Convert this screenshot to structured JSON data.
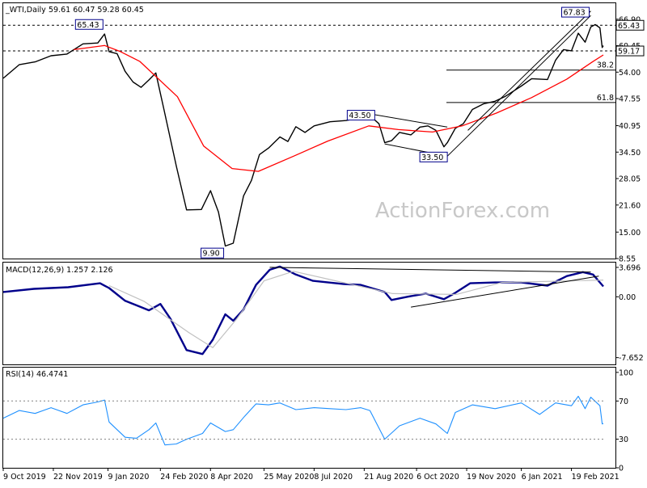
{
  "chart_data": [
    {
      "type": "candlestick",
      "symbol_header": "_WTI,Daily",
      "ohlc_header": "59.61 60.47 59.28 60.45",
      "watermark": "ActionForex.com",
      "ylim": [
        8.55,
        70.8
      ],
      "y_ticks": [
        "66.90",
        "60.45",
        "54.00",
        "47.55",
        "40.95",
        "34.50",
        "28.05",
        "21.60",
        "15.00",
        "8.55"
      ],
      "price_tags": [
        {
          "label": "65.43",
          "value": 65.43
        },
        {
          "label": "59.17",
          "value": 59.17
        }
      ],
      "fib_levels": [
        {
          "label": "38.2",
          "value": 54.5
        },
        {
          "label": "61.8",
          "value": 46.6
        }
      ],
      "annotations": [
        {
          "label": "65.43",
          "date": "2020-01-06",
          "value": 65.43
        },
        {
          "label": "9.90",
          "date": "2020-04-21",
          "value": 9.9
        },
        {
          "label": "43.50",
          "date": "2020-08-26",
          "value": 43.5
        },
        {
          "label": "33.50",
          "date": "2020-11-02",
          "value": 33.5
        },
        {
          "label": "67.83",
          "date": "2021-03-08",
          "value": 67.83
        }
      ],
      "series": [
        {
          "name": "price",
          "color": "#000000",
          "points": [
            [
              "2019-10-09",
              52.5
            ],
            [
              "2019-10-23",
              55.8
            ],
            [
              "2019-11-06",
              56.5
            ],
            [
              "2019-11-20",
              58.0
            ],
            [
              "2019-12-04",
              58.4
            ],
            [
              "2019-12-18",
              60.9
            ],
            [
              "2019-12-31",
              61.1
            ],
            [
              "2020-01-06",
              63.3
            ],
            [
              "2020-01-10",
              59.0
            ],
            [
              "2020-01-17",
              58.5
            ],
            [
              "2020-01-24",
              54.2
            ],
            [
              "2020-01-31",
              51.6
            ],
            [
              "2020-02-07",
              50.3
            ],
            [
              "2020-02-14",
              52.1
            ],
            [
              "2020-02-20",
              53.8
            ],
            [
              "2020-02-27",
              45.1
            ],
            [
              "2020-03-09",
              31.1
            ],
            [
              "2020-03-18",
              20.4
            ],
            [
              "2020-03-31",
              20.5
            ],
            [
              "2020-04-08",
              25.1
            ],
            [
              "2020-04-15",
              19.9
            ],
            [
              "2020-04-21",
              11.6
            ],
            [
              "2020-04-28",
              12.3
            ],
            [
              "2020-05-07",
              23.8
            ],
            [
              "2020-05-14",
              27.6
            ],
            [
              "2020-05-21",
              33.9
            ],
            [
              "2020-05-29",
              35.5
            ],
            [
              "2020-06-08",
              38.2
            ],
            [
              "2020-06-15",
              37.1
            ],
            [
              "2020-06-22",
              40.7
            ],
            [
              "2020-06-30",
              39.3
            ],
            [
              "2020-07-08",
              40.9
            ],
            [
              "2020-07-22",
              41.9
            ],
            [
              "2020-08-05",
              42.2
            ],
            [
              "2020-08-18",
              42.9
            ],
            [
              "2020-08-26",
              43.4
            ],
            [
              "2020-09-03",
              41.4
            ],
            [
              "2020-09-08",
              36.8
            ],
            [
              "2020-09-14",
              37.3
            ],
            [
              "2020-09-21",
              39.3
            ],
            [
              "2020-10-01",
              38.7
            ],
            [
              "2020-10-09",
              40.6
            ],
            [
              "2020-10-16",
              40.9
            ],
            [
              "2020-10-23",
              39.8
            ],
            [
              "2020-10-30",
              35.8
            ],
            [
              "2020-11-02",
              36.8
            ],
            [
              "2020-11-09",
              40.3
            ],
            [
              "2020-11-16",
              41.4
            ],
            [
              "2020-11-24",
              44.9
            ],
            [
              "2020-12-04",
              46.3
            ],
            [
              "2020-12-14",
              46.9
            ],
            [
              "2020-12-23",
              48.1
            ],
            [
              "2021-01-06",
              50.6
            ],
            [
              "2021-01-15",
              52.4
            ],
            [
              "2021-01-22",
              52.3
            ],
            [
              "2021-01-29",
              52.2
            ],
            [
              "2021-02-05",
              56.9
            ],
            [
              "2021-02-12",
              59.5
            ],
            [
              "2021-02-19",
              59.2
            ],
            [
              "2021-02-25",
              63.5
            ],
            [
              "2021-03-03",
              61.3
            ],
            [
              "2021-03-08",
              65.0
            ],
            [
              "2021-03-12",
              65.6
            ],
            [
              "2021-03-16",
              64.8
            ],
            [
              "2021-03-18",
              60.0
            ],
            [
              "2021-03-19",
              60.45
            ]
          ]
        },
        {
          "name": "ma",
          "color": "#ff0000",
          "points": [
            [
              "2019-12-10",
              59.5
            ],
            [
              "2020-01-06",
              60.5
            ],
            [
              "2020-01-20",
              59.0
            ],
            [
              "2020-02-06",
              56.6
            ],
            [
              "2020-03-10",
              48.0
            ],
            [
              "2020-04-02",
              36.0
            ],
            [
              "2020-04-27",
              30.5
            ],
            [
              "2020-05-20",
              29.8
            ],
            [
              "2020-06-20",
              33.5
            ],
            [
              "2020-07-20",
              37.2
            ],
            [
              "2020-08-25",
              40.9
            ],
            [
              "2020-09-20",
              40.0
            ],
            [
              "2020-10-20",
              39.4
            ],
            [
              "2020-11-15",
              40.9
            ],
            [
              "2020-12-15",
              44.0
            ],
            [
              "2021-01-15",
              47.8
            ],
            [
              "2021-02-15",
              52.3
            ],
            [
              "2021-03-10",
              56.6
            ],
            [
              "2021-03-19",
              58.2
            ]
          ]
        },
        {
          "name": "trend",
          "color": "#000000",
          "points": [
            [
              "2020-08-20",
              44.1
            ],
            [
              "2020-11-02",
              40.6
            ]
          ]
        },
        {
          "name": "trend",
          "color": "#000000",
          "points": [
            [
              "2020-09-08",
              36.5
            ],
            [
              "2020-11-02",
              33.5
            ]
          ]
        },
        {
          "name": "trend",
          "color": "#000000",
          "points": [
            [
              "2020-11-02",
              33.5
            ],
            [
              "2021-03-08",
              67.8
            ]
          ]
        },
        {
          "name": "trend",
          "color": "#000000",
          "points": [
            [
              "2020-11-20",
              39.8
            ],
            [
              "2021-03-08",
              68.9
            ]
          ]
        }
      ]
    },
    {
      "type": "line",
      "title": "MACD(12,26,9) 1.257 2.126",
      "ylim": [
        -8.5,
        4.3
      ],
      "y_ticks": [
        "3.696",
        "0.00",
        "-7.652"
      ],
      "series": [
        {
          "name": "macd",
          "color": "#00008b",
          "points": [
            [
              "2019-10-09",
              0.6
            ],
            [
              "2019-11-05",
              1.0
            ],
            [
              "2019-12-05",
              1.2
            ],
            [
              "2020-01-02",
              1.7
            ],
            [
              "2020-01-10",
              1.1
            ],
            [
              "2020-01-24",
              -0.5
            ],
            [
              "2020-02-07",
              -1.3
            ],
            [
              "2020-02-14",
              -1.7
            ],
            [
              "2020-02-24",
              -0.9
            ],
            [
              "2020-03-04",
              -2.8
            ],
            [
              "2020-03-18",
              -6.7
            ],
            [
              "2020-04-01",
              -7.2
            ],
            [
              "2020-04-10",
              -5.4
            ],
            [
              "2020-04-21",
              -2.2
            ],
            [
              "2020-04-28",
              -3.0
            ],
            [
              "2020-05-07",
              -1.6
            ],
            [
              "2020-05-18",
              1.5
            ],
            [
              "2020-05-30",
              3.4
            ],
            [
              "2020-06-08",
              3.8
            ],
            [
              "2020-06-22",
              2.8
            ],
            [
              "2020-07-07",
              2.0
            ],
            [
              "2020-08-03",
              1.6
            ],
            [
              "2020-08-18",
              1.5
            ],
            [
              "2020-09-08",
              0.6
            ],
            [
              "2020-09-14",
              -0.4
            ],
            [
              "2020-09-28",
              0.0
            ],
            [
              "2020-10-14",
              0.4
            ],
            [
              "2020-10-30",
              -0.3
            ],
            [
              "2020-11-09",
              0.5
            ],
            [
              "2020-11-22",
              1.7
            ],
            [
              "2020-12-14",
              1.8
            ],
            [
              "2021-01-06",
              1.8
            ],
            [
              "2021-01-29",
              1.4
            ],
            [
              "2021-02-15",
              2.6
            ],
            [
              "2021-03-01",
              3.1
            ],
            [
              "2021-03-10",
              2.8
            ],
            [
              "2021-03-19",
              1.3
            ]
          ]
        },
        {
          "name": "signal",
          "color": "#c0c0c0",
          "points": [
            [
              "2020-01-10",
              1.4
            ],
            [
              "2020-02-10",
              -0.6
            ],
            [
              "2020-03-20",
              -4.5
            ],
            [
              "2020-04-10",
              -6.4
            ],
            [
              "2020-05-01",
              -2.8
            ],
            [
              "2020-05-25",
              2.0
            ],
            [
              "2020-06-20",
              3.2
            ],
            [
              "2020-07-30",
              1.9
            ],
            [
              "2020-09-15",
              0.4
            ],
            [
              "2020-11-10",
              0.3
            ],
            [
              "2020-12-20",
              1.8
            ],
            [
              "2021-03-19",
              2.1
            ]
          ]
        },
        {
          "name": "trend",
          "color": "#000000",
          "points": [
            [
              "2020-05-30",
              3.7
            ],
            [
              "2021-03-08",
              3.1
            ]
          ]
        },
        {
          "name": "trend",
          "color": "#000000",
          "points": [
            [
              "2020-10-01",
              -1.3
            ],
            [
              "2021-03-15",
              2.6
            ]
          ]
        }
      ]
    },
    {
      "type": "line",
      "title": "RSI(14) 46.4741",
      "ylim": [
        0,
        105
      ],
      "y_ticks": [
        "100",
        "70",
        "30",
        "0"
      ],
      "x_ticks": [
        "9 Oct 2019",
        "22 Nov 2019",
        "9 Jan 2020",
        "24 Feb 2020",
        "8 Apr 2020",
        "25 May 2020",
        "8 Jul 2020",
        "21 Aug 2020",
        "6 Oct 2020",
        "19 Nov 2020",
        "6 Jan 2021",
        "19 Feb 2021"
      ],
      "series": [
        {
          "name": "rsi",
          "color": "#1e90ff",
          "points": [
            [
              "2019-10-09",
              52
            ],
            [
              "2019-10-23",
              60
            ],
            [
              "2019-11-06",
              57
            ],
            [
              "2019-11-20",
              63
            ],
            [
              "2019-12-04",
              57
            ],
            [
              "2019-12-18",
              66
            ],
            [
              "2019-12-31",
              69
            ],
            [
              "2020-01-06",
              71
            ],
            [
              "2020-01-10",
              48
            ],
            [
              "2020-01-17",
              40
            ],
            [
              "2020-01-24",
              32
            ],
            [
              "2020-02-03",
              31
            ],
            [
              "2020-02-14",
              40
            ],
            [
              "2020-02-20",
              47
            ],
            [
              "2020-02-28",
              24
            ],
            [
              "2020-03-09",
              25
            ],
            [
              "2020-03-18",
              30
            ],
            [
              "2020-04-01",
              36
            ],
            [
              "2020-04-08",
              47
            ],
            [
              "2020-04-21",
              38
            ],
            [
              "2020-04-28",
              40
            ],
            [
              "2020-05-08",
              54
            ],
            [
              "2020-05-18",
              67
            ],
            [
              "2020-05-29",
              66
            ],
            [
              "2020-06-08",
              68
            ],
            [
              "2020-06-22",
              61
            ],
            [
              "2020-07-08",
              63
            ],
            [
              "2020-07-22",
              62
            ],
            [
              "2020-08-05",
              61
            ],
            [
              "2020-08-18",
              63
            ],
            [
              "2020-08-26",
              60
            ],
            [
              "2020-09-08",
              30
            ],
            [
              "2020-09-21",
              44
            ],
            [
              "2020-10-09",
              52
            ],
            [
              "2020-10-23",
              46
            ],
            [
              "2020-11-02",
              36
            ],
            [
              "2020-11-09",
              58
            ],
            [
              "2020-11-24",
              66
            ],
            [
              "2020-12-14",
              62
            ],
            [
              "2021-01-06",
              68
            ],
            [
              "2021-01-22",
              56
            ],
            [
              "2021-02-05",
              68
            ],
            [
              "2021-02-19",
              65
            ],
            [
              "2021-02-25",
              75
            ],
            [
              "2021-03-03",
              62
            ],
            [
              "2021-03-08",
              74
            ],
            [
              "2021-03-16",
              65
            ],
            [
              "2021-03-18",
              46
            ],
            [
              "2021-03-19",
              46.5
            ]
          ]
        },
        {
          "name": "level",
          "color": "#808080",
          "points": [
            [
              "2019-10-09",
              70
            ],
            [
              "2021-03-19",
              70
            ]
          ]
        },
        {
          "name": "level",
          "color": "#808080",
          "points": [
            [
              "2019-10-09",
              30
            ],
            [
              "2021-03-19",
              30
            ]
          ]
        }
      ]
    }
  ]
}
